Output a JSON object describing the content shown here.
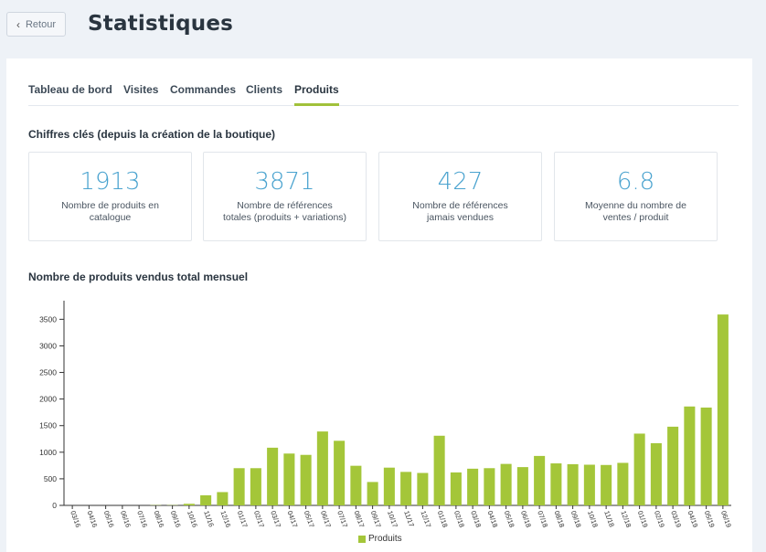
{
  "header": {
    "back_label": "Retour",
    "title": "Statistiques"
  },
  "tabs": [
    {
      "label": "Tableau de bord",
      "active": false
    },
    {
      "label": "Visites",
      "active": false
    },
    {
      "label": "Commandes",
      "active": false
    },
    {
      "label": "Clients",
      "active": false
    },
    {
      "label": "Produits",
      "active": true
    }
  ],
  "key_figures": {
    "title": "Chiffres clés (depuis la création de la boutique)",
    "cards": [
      {
        "value": "1913",
        "label": "Nombre de produits en catalogue"
      },
      {
        "value": "3871",
        "label": "Nombre de références totales (produits + variations)"
      },
      {
        "value": "427",
        "label": "Nombre de références jamais vendues"
      },
      {
        "value": "6.8",
        "label": "Moyenne du nombre de ventes / produit"
      }
    ]
  },
  "chart_data": {
    "type": "bar",
    "title": "Nombre de produits vendus total mensuel",
    "categories": [
      "03/16",
      "04/16",
      "05/16",
      "06/16",
      "07/16",
      "08/16",
      "09/16",
      "10/16",
      "11/16",
      "12/16",
      "01/17",
      "02/17",
      "03/17",
      "04/17",
      "05/17",
      "06/17",
      "07/17",
      "08/17",
      "09/17",
      "10/17",
      "11/17",
      "12/17",
      "01/18",
      "02/18",
      "03/18",
      "04/18",
      "05/18",
      "06/18",
      "07/18",
      "08/18",
      "09/18",
      "10/18",
      "11/18",
      "12/18",
      "01/19",
      "02/19",
      "03/19",
      "04/19",
      "05/19",
      "06/19"
    ],
    "series": [
      {
        "name": "Produits",
        "values": [
          0,
          0,
          0,
          0,
          0,
          5,
          5,
          30,
          190,
          250,
          700,
          700,
          1085,
          975,
          950,
          1390,
          1215,
          745,
          440,
          710,
          630,
          610,
          1310,
          620,
          690,
          700,
          780,
          720,
          930,
          790,
          775,
          765,
          760,
          800,
          1350,
          1170,
          1480,
          1860,
          1840,
          3590
        ]
      }
    ],
    "yticks": [
      0,
      500,
      1000,
      1500,
      2000,
      2500,
      3000,
      3500
    ],
    "ylim": [
      0,
      3850
    ],
    "color": "#a4c639",
    "legend_position": "bottom-center",
    "grid": false
  }
}
